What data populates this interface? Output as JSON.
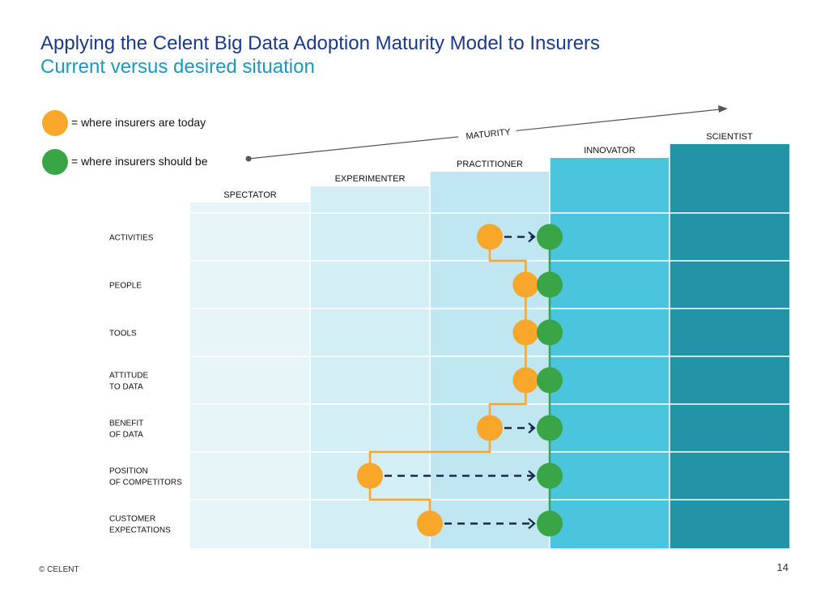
{
  "header": {
    "title": "Applying the Celent Big Data Adoption Maturity Model to Insurers",
    "subtitle": "Current versus desired situation"
  },
  "legend": {
    "today": {
      "label": "= where insurers are today",
      "color": "#f9a72b"
    },
    "should": {
      "label": "= where insurers should be",
      "color": "#3aa546"
    }
  },
  "axis_label": "MATURITY",
  "stages": [
    {
      "label": "SPECTATOR",
      "color": "#e8f5f8"
    },
    {
      "label": "EXPERIMENTER",
      "color": "#d4eef5"
    },
    {
      "label": "PRACTITIONER",
      "color": "#bfe6f1"
    },
    {
      "label": "INNOVATOR",
      "color": "#4bc4de"
    },
    {
      "label": "SCIENTIST",
      "color": "#2393a8"
    }
  ],
  "rows": [
    {
      "label": [
        "ACTIVITIES"
      ]
    },
    {
      "label": [
        "PEOPLE"
      ]
    },
    {
      "label": [
        "TOOLS"
      ]
    },
    {
      "label": [
        "ATTITUDE",
        "TO DATA"
      ]
    },
    {
      "label": [
        "BENEFIT",
        "OF DATA"
      ]
    },
    {
      "label": [
        "POSITION",
        "OF COMPETITORS"
      ]
    },
    {
      "label": [
        "CUSTOMER",
        "EXPECTATIONS"
      ]
    }
  ],
  "assessment": {
    "today_stage_position": [
      2.5,
      2.8,
      2.8,
      2.8,
      2.5,
      1.5,
      2.0
    ],
    "should_stage_position": [
      3.0,
      3.0,
      3.0,
      3.0,
      3.0,
      3.0,
      3.0
    ],
    "line_colors": {
      "today": "#f9a72b",
      "should": "#3aa546",
      "arrow": "#1b2a4a"
    }
  },
  "footer": {
    "copyright": "© CELENT",
    "page": "14"
  }
}
